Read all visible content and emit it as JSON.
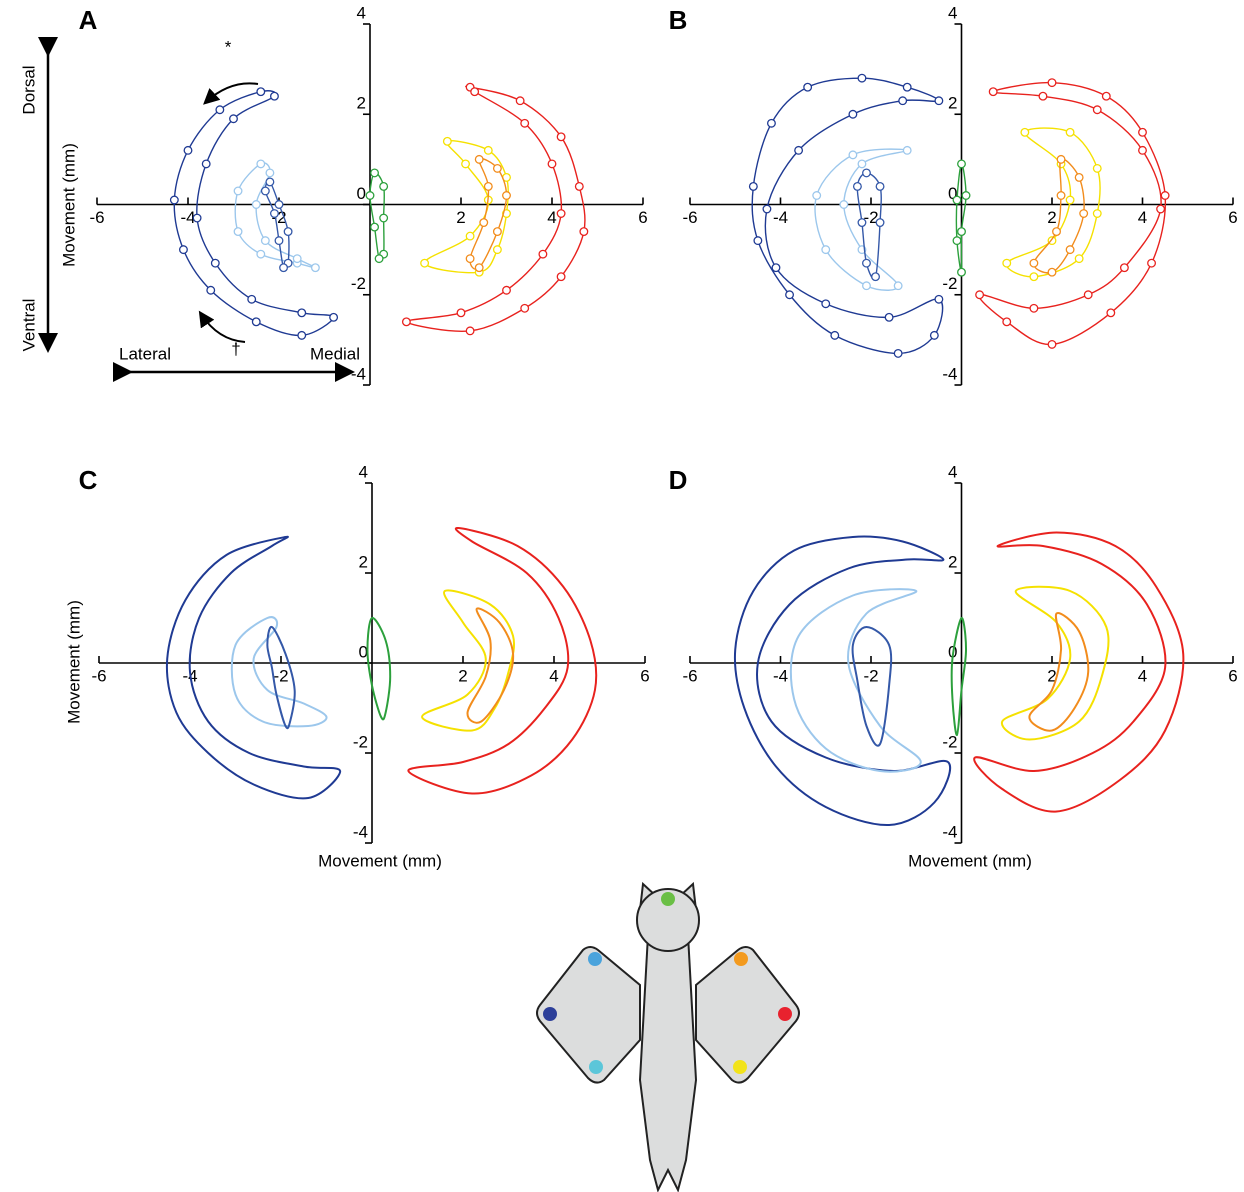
{
  "chart_data": [
    {
      "type": "line",
      "label": "A",
      "markers": true,
      "closed": true,
      "ylabel": "Movement (mm)",
      "annotations": [
        "Dorsal",
        "Ventral",
        "Lateral",
        "Medial",
        "*",
        "†"
      ],
      "xlim": [
        -6,
        6
      ],
      "ylim": [
        -4,
        4
      ],
      "xticks": [
        -6,
        -4,
        -2,
        2,
        4,
        6
      ],
      "yticks": [
        -4,
        -2,
        0,
        2,
        4
      ],
      "series": [
        {
          "color": "#1f3a93",
          "x": [
            -2.4,
            -3.3,
            -4.0,
            -4.3,
            -4.1,
            -3.5,
            -2.5,
            -1.5,
            -0.8,
            -1.5,
            -2.6,
            -3.4,
            -3.8,
            -3.6,
            -3.0,
            -2.1
          ],
          "values": [
            2.5,
            2.1,
            1.2,
            0.1,
            -1.0,
            -1.9,
            -2.6,
            -2.9,
            -2.5,
            -2.4,
            -2.1,
            -1.3,
            -0.3,
            0.9,
            1.9,
            2.4
          ]
        },
        {
          "color": "#9cc7ec",
          "x": [
            -2.4,
            -2.9,
            -2.9,
            -2.4,
            -1.6,
            -1.2,
            -1.6,
            -2.3,
            -2.5,
            -2.2
          ],
          "values": [
            0.9,
            0.3,
            -0.6,
            -1.1,
            -1.3,
            -1.4,
            -1.2,
            -0.8,
            0.0,
            0.7
          ]
        },
        {
          "color": "#3458a8",
          "x": [
            -2.2,
            -2.0,
            -1.8,
            -1.8,
            -1.9,
            -2.0,
            -2.1,
            -2.3
          ],
          "values": [
            0.5,
            0.0,
            -0.6,
            -1.3,
            -1.4,
            -0.8,
            -0.2,
            0.3
          ]
        },
        {
          "color": "#2ca03c",
          "x": [
            0.1,
            0.3,
            0.3,
            0.3,
            0.2,
            0.1,
            0.0
          ],
          "values": [
            0.7,
            0.4,
            -0.3,
            -1.1,
            -1.2,
            -0.5,
            0.2
          ]
        },
        {
          "color": "#f5e100",
          "x": [
            1.7,
            2.6,
            3.0,
            3.0,
            2.8,
            2.4,
            1.2,
            2.2,
            2.6,
            2.1
          ],
          "values": [
            1.4,
            1.2,
            0.6,
            -0.2,
            -1.0,
            -1.5,
            -1.3,
            -0.7,
            0.1,
            0.9
          ]
        },
        {
          "color": "#f28c1c",
          "x": [
            2.4,
            2.8,
            3.0,
            2.8,
            2.4,
            2.2,
            2.5,
            2.6
          ],
          "values": [
            1.0,
            0.8,
            0.2,
            -0.6,
            -1.4,
            -1.2,
            -0.4,
            0.4
          ]
        },
        {
          "color": "#e8221e",
          "x": [
            2.2,
            3.3,
            4.2,
            4.6,
            4.7,
            4.2,
            3.4,
            2.2,
            0.8,
            2.0,
            3.0,
            3.8,
            4.2,
            4.0,
            3.4,
            2.3
          ],
          "values": [
            2.6,
            2.3,
            1.5,
            0.4,
            -0.6,
            -1.6,
            -2.3,
            -2.8,
            -2.6,
            -2.4,
            -1.9,
            -1.1,
            -0.2,
            0.9,
            1.8,
            2.5
          ]
        }
      ]
    },
    {
      "type": "line",
      "label": "B",
      "markers": true,
      "closed": true,
      "xlim": [
        -6,
        6
      ],
      "ylim": [
        -4,
        4
      ],
      "xticks": [
        -6,
        -4,
        -2,
        2,
        4,
        6
      ],
      "yticks": [
        -4,
        -2,
        0,
        2,
        4
      ],
      "series": [
        {
          "color": "#1f3a93",
          "x": [
            -0.5,
            -1.2,
            -2.2,
            -3.4,
            -4.2,
            -4.6,
            -4.5,
            -3.8,
            -2.8,
            -1.4,
            -0.6,
            -0.5,
            -1.6,
            -3.0,
            -4.1,
            -4.3,
            -3.6,
            -2.4,
            -1.3
          ],
          "values": [
            2.3,
            2.6,
            2.8,
            2.6,
            1.8,
            0.4,
            -0.8,
            -2.0,
            -2.9,
            -3.3,
            -2.9,
            -2.1,
            -2.5,
            -2.2,
            -1.4,
            -0.1,
            1.2,
            2.0,
            2.3
          ]
        },
        {
          "color": "#9cc7ec",
          "x": [
            -1.2,
            -2.4,
            -3.2,
            -3.0,
            -2.1,
            -1.4,
            -2.2,
            -2.6,
            -2.2
          ],
          "values": [
            1.2,
            1.1,
            0.2,
            -1.0,
            -1.8,
            -1.8,
            -1.0,
            0.0,
            0.9
          ]
        },
        {
          "color": "#3458a8",
          "x": [
            -2.1,
            -1.8,
            -1.8,
            -1.9,
            -2.1,
            -2.2,
            -2.3
          ],
          "values": [
            0.7,
            0.4,
            -0.4,
            -1.6,
            -1.3,
            -0.4,
            0.4
          ]
        },
        {
          "color": "#2ca03c",
          "x": [
            0.0,
            0.1,
            0.0,
            0.0,
            -0.1,
            -0.1
          ],
          "values": [
            0.9,
            0.2,
            -0.6,
            -1.5,
            -0.8,
            0.1
          ]
        },
        {
          "color": "#f5e100",
          "x": [
            1.4,
            2.4,
            3.0,
            3.0,
            2.6,
            1.6,
            1.0,
            2.0,
            2.4,
            2.2
          ],
          "values": [
            1.6,
            1.6,
            0.8,
            -0.2,
            -1.2,
            -1.6,
            -1.3,
            -0.8,
            0.1,
            0.9
          ]
        },
        {
          "color": "#f28c1c",
          "x": [
            2.2,
            2.6,
            2.7,
            2.4,
            2.0,
            1.6,
            2.1,
            2.2
          ],
          "values": [
            1.0,
            0.6,
            -0.2,
            -1.0,
            -1.5,
            -1.3,
            -0.6,
            0.2
          ]
        },
        {
          "color": "#e8221e",
          "x": [
            0.7,
            2.0,
            3.2,
            4.0,
            4.5,
            4.2,
            3.3,
            2.0,
            1.0,
            0.4,
            1.6,
            2.8,
            3.6,
            4.4,
            4.0,
            3.0,
            1.8
          ],
          "values": [
            2.5,
            2.7,
            2.4,
            1.6,
            0.2,
            -1.3,
            -2.4,
            -3.1,
            -2.6,
            -2.0,
            -2.3,
            -2.0,
            -1.4,
            -0.1,
            1.2,
            2.1,
            2.4
          ]
        }
      ]
    },
    {
      "type": "line",
      "label": "C",
      "markers": false,
      "closed": true,
      "ylabel": "Movement (mm)",
      "xlabel": "Movement (mm)",
      "xlim": [
        -6,
        6
      ],
      "ylim": [
        -4,
        4
      ],
      "xticks": [
        -6,
        -4,
        -2,
        2,
        4,
        6
      ],
      "yticks": [
        -4,
        -2,
        0,
        2,
        4
      ],
      "series": [
        {
          "color": "#1f3a93",
          "x": [
            -1.9,
            -3.2,
            -4.1,
            -4.5,
            -4.3,
            -3.6,
            -2.6,
            -1.4,
            -0.7,
            -1.5,
            -2.7,
            -3.6,
            -4.0,
            -3.8,
            -3.1,
            -2.2
          ],
          "values": [
            2.8,
            2.4,
            1.4,
            0.1,
            -1.1,
            -2.0,
            -2.7,
            -3.0,
            -2.4,
            -2.3,
            -2.0,
            -1.3,
            -0.2,
            1.0,
            2.0,
            2.6
          ]
        },
        {
          "color": "#9cc7ec",
          "x": [
            -2.3,
            -3.0,
            -3.0,
            -2.4,
            -1.4,
            -1.0,
            -1.5,
            -2.3,
            -2.6,
            -2.1
          ],
          "values": [
            1.0,
            0.4,
            -0.7,
            -1.3,
            -1.4,
            -1.2,
            -0.9,
            -0.6,
            0.1,
            0.8
          ]
        },
        {
          "color": "#3458a8",
          "x": [
            -2.2,
            -1.9,
            -1.7,
            -1.8,
            -1.9,
            -2.1,
            -2.2,
            -2.3
          ],
          "values": [
            0.8,
            0.2,
            -0.6,
            -1.3,
            -1.4,
            -0.7,
            -0.1,
            0.4
          ]
        },
        {
          "color": "#2ca03c",
          "x": [
            0.0,
            0.3,
            0.4,
            0.3,
            0.2,
            0.0,
            -0.1
          ],
          "values": [
            1.0,
            0.5,
            -0.3,
            -1.1,
            -1.2,
            -0.5,
            0.3
          ]
        },
        {
          "color": "#f5e100",
          "x": [
            1.6,
            2.6,
            3.1,
            3.0,
            2.7,
            2.2,
            1.1,
            2.1,
            2.5,
            2.0
          ],
          "values": [
            1.6,
            1.3,
            0.6,
            -0.2,
            -1.0,
            -1.5,
            -1.2,
            -0.7,
            0.1,
            0.9
          ]
        },
        {
          "color": "#f28c1c",
          "x": [
            2.3,
            2.8,
            3.1,
            2.9,
            2.4,
            2.1,
            2.5,
            2.6
          ],
          "values": [
            1.2,
            0.9,
            0.2,
            -0.6,
            -1.3,
            -1.1,
            -0.3,
            0.5
          ]
        },
        {
          "color": "#e8221e",
          "x": [
            1.9,
            3.2,
            4.2,
            4.8,
            4.9,
            4.4,
            3.5,
            2.2,
            0.8,
            2.0,
            3.0,
            3.8,
            4.3,
            4.1,
            3.4,
            2.2
          ],
          "values": [
            3.0,
            2.6,
            1.7,
            0.5,
            -0.6,
            -1.7,
            -2.5,
            -2.9,
            -2.4,
            -2.2,
            -1.8,
            -1.0,
            -0.1,
            1.0,
            2.0,
            2.7
          ]
        }
      ]
    },
    {
      "type": "line",
      "label": "D",
      "markers": false,
      "closed": true,
      "xlabel": "Movement (mm)",
      "xlim": [
        -6,
        6
      ],
      "ylim": [
        -4,
        4
      ],
      "xticks": [
        -6,
        -4,
        -2,
        2,
        4,
        6
      ],
      "yticks": [
        -4,
        -2,
        0,
        2,
        4
      ],
      "series": [
        {
          "color": "#1f3a93",
          "x": [
            -0.4,
            -1.3,
            -2.4,
            -3.7,
            -4.6,
            -5.0,
            -4.8,
            -4.1,
            -3.0,
            -1.6,
            -0.6,
            -0.3,
            -1.5,
            -3.0,
            -4.2,
            -4.5,
            -3.8,
            -2.5,
            -1.2
          ],
          "values": [
            2.3,
            2.7,
            2.8,
            2.5,
            1.6,
            0.3,
            -1.0,
            -2.3,
            -3.2,
            -3.6,
            -3.1,
            -2.2,
            -2.4,
            -2.1,
            -1.3,
            0.0,
            1.3,
            2.1,
            2.3
          ]
        },
        {
          "color": "#9cc7ec",
          "x": [
            -1.0,
            -2.4,
            -3.6,
            -3.7,
            -3.0,
            -1.8,
            -0.9,
            -1.8,
            -2.5,
            -2.1
          ],
          "values": [
            1.6,
            1.5,
            0.6,
            -0.8,
            -1.9,
            -2.4,
            -2.2,
            -1.4,
            0.0,
            1.1
          ]
        },
        {
          "color": "#3458a8",
          "x": [
            -2.1,
            -1.6,
            -1.6,
            -1.8,
            -2.1,
            -2.3,
            -2.4
          ],
          "values": [
            0.8,
            0.4,
            -0.5,
            -1.8,
            -1.4,
            -0.4,
            0.4
          ]
        },
        {
          "color": "#2ca03c",
          "x": [
            0.0,
            0.1,
            0.0,
            -0.1,
            -0.2,
            -0.2
          ],
          "values": [
            1.0,
            0.3,
            -0.6,
            -1.6,
            -0.8,
            0.1
          ]
        },
        {
          "color": "#f5e100",
          "x": [
            1.2,
            2.4,
            3.2,
            3.1,
            2.6,
            1.5,
            0.9,
            1.9,
            2.4,
            2.1
          ],
          "values": [
            1.6,
            1.6,
            0.8,
            -0.3,
            -1.3,
            -1.7,
            -1.3,
            -0.8,
            0.1,
            0.9
          ]
        },
        {
          "color": "#f28c1c",
          "x": [
            2.1,
            2.6,
            2.8,
            2.5,
            2.0,
            1.5,
            2.0,
            2.2
          ],
          "values": [
            1.1,
            0.7,
            -0.2,
            -1.0,
            -1.5,
            -1.2,
            -0.6,
            0.3
          ]
        },
        {
          "color": "#e8221e",
          "x": [
            0.8,
            2.1,
            3.4,
            4.3,
            4.9,
            4.5,
            3.5,
            2.1,
            0.9,
            0.3,
            1.6,
            2.9,
            3.8,
            4.5,
            4.1,
            3.1,
            1.8
          ],
          "values": [
            2.6,
            2.9,
            2.6,
            1.7,
            0.2,
            -1.5,
            -2.6,
            -3.3,
            -2.8,
            -2.1,
            -2.4,
            -2.0,
            -1.3,
            -0.1,
            1.3,
            2.2,
            2.6
          ]
        }
      ]
    }
  ]
}
